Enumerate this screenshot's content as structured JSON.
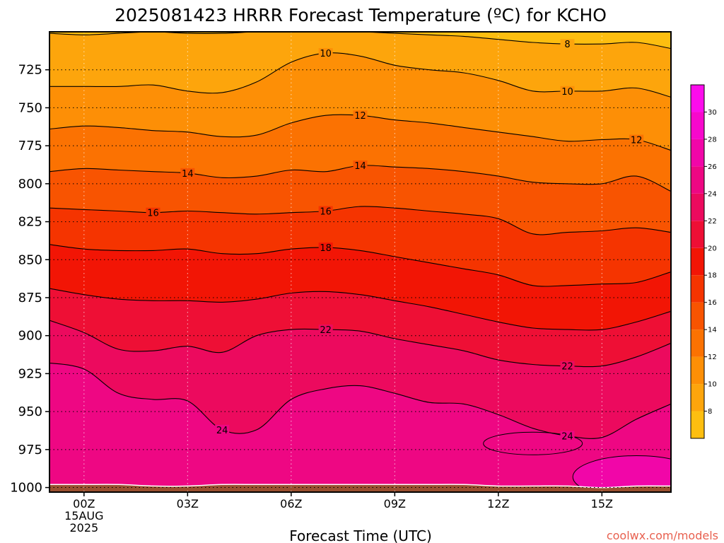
{
  "chart_data": {
    "type": "contour",
    "title": "2025081423 HRRR Forecast Temperature (ºC) for KCHO",
    "xlabel": "Forecast Time (UTC)",
    "ylabel": "",
    "x_ticks": [
      {
        "hour": 0,
        "lines": [
          "00Z",
          "15AUG",
          "2025"
        ]
      },
      {
        "hour": 3,
        "lines": [
          "03Z"
        ]
      },
      {
        "hour": 6,
        "lines": [
          "06Z"
        ]
      },
      {
        "hour": 9,
        "lines": [
          "09Z"
        ]
      },
      {
        "hour": 12,
        "lines": [
          "12Z"
        ]
      },
      {
        "hour": 15,
        "lines": [
          "15Z"
        ]
      }
    ],
    "xlim": [
      -1,
      17
    ],
    "y_ticks": [
      725,
      750,
      775,
      800,
      825,
      850,
      875,
      900,
      925,
      950,
      975,
      1000
    ],
    "ylim": [
      700,
      1003
    ],
    "x_hours": [
      -1,
      0,
      1,
      2,
      3,
      4,
      5,
      6,
      7,
      8,
      9,
      10,
      11,
      12,
      13,
      14,
      15,
      16,
      17
    ],
    "contour_levels": [
      8,
      10,
      12,
      14,
      16,
      18,
      20,
      22,
      24
    ],
    "isotherms": [
      {
        "level": 8,
        "p": [
          701,
          702,
          701,
          700,
          701,
          701,
          700,
          700,
          700,
          700,
          701,
          702,
          703,
          705,
          707,
          708,
          708,
          707,
          711
        ]
      },
      {
        "level": 10,
        "p": [
          736,
          736,
          736,
          735,
          739,
          740,
          733,
          720,
          714,
          716,
          722,
          725,
          727,
          732,
          739,
          739,
          739,
          737,
          743
        ]
      },
      {
        "level": 12,
        "p": [
          764,
          762,
          763,
          765,
          766,
          769,
          768,
          760,
          755,
          755,
          758,
          760,
          763,
          766,
          769,
          772,
          771,
          771,
          778
        ]
      },
      {
        "level": 14,
        "p": [
          792,
          790,
          791,
          792,
          793,
          796,
          795,
          791,
          792,
          788,
          789,
          790,
          792,
          795,
          799,
          800,
          800,
          795,
          805
        ]
      },
      {
        "level": 16,
        "p": [
          816,
          817,
          818,
          819,
          818,
          819,
          820,
          819,
          818,
          815,
          816,
          818,
          820,
          823,
          833,
          832,
          831,
          829,
          832
        ]
      },
      {
        "level": 18,
        "p": [
          840,
          843,
          844,
          844,
          843,
          846,
          846,
          843,
          842,
          844,
          848,
          852,
          856,
          860,
          867,
          867,
          866,
          865,
          858
        ]
      },
      {
        "level": 20,
        "p": [
          869,
          873,
          876,
          877,
          877,
          878,
          876,
          872,
          871,
          873,
          877,
          881,
          886,
          891,
          895,
          896,
          896,
          891,
          884
        ]
      },
      {
        "level": 22,
        "p": [
          890,
          898,
          909,
          910,
          907,
          911,
          900,
          896,
          896,
          897,
          902,
          906,
          910,
          916,
          919,
          920,
          920,
          914,
          905
        ]
      },
      {
        "level": 24,
        "p": [
          918,
          922,
          938,
          942,
          943,
          962,
          962,
          942,
          935,
          933,
          938,
          944,
          945,
          952,
          961,
          966,
          967,
          955,
          945
        ]
      }
    ],
    "contour_labels": [
      {
        "level": 10,
        "hour": 7.0
      },
      {
        "level": 10,
        "hour": 14.0
      },
      {
        "level": 8,
        "hour": 14.0
      },
      {
        "level": 12,
        "hour": 8.0
      },
      {
        "level": 12,
        "hour": 16.0
      },
      {
        "level": 14,
        "hour": 3.0
      },
      {
        "level": 14,
        "hour": 8.0
      },
      {
        "level": 16,
        "hour": 2.0
      },
      {
        "level": 16,
        "hour": 7.0
      },
      {
        "level": 18,
        "hour": 7.0
      },
      {
        "level": 22,
        "hour": 7.0
      },
      {
        "level": 22,
        "hour": 14.0
      },
      {
        "level": 24,
        "hour": 4.0
      },
      {
        "level": 24,
        "hour": 14.0
      }
    ],
    "warm_pockets": [
      {
        "level": 24,
        "hour": 13.0,
        "p": 971
      },
      {
        "level": 26,
        "hour": 16.0,
        "p": 993
      }
    ],
    "surface_p": [
      998,
      998,
      998,
      999,
      999,
      998,
      998,
      998,
      998,
      998,
      998,
      998,
      998,
      999,
      999,
      999,
      1000,
      999,
      999
    ],
    "colorbar": {
      "ticks": [
        8,
        10,
        12,
        14,
        16,
        18,
        20,
        22,
        24,
        26,
        28,
        30
      ],
      "range": [
        6,
        32
      ],
      "colors": [
        {
          "from": 6,
          "to": 8,
          "color": "#FDBE10"
        },
        {
          "from": 8,
          "to": 10,
          "color": "#FDA50C"
        },
        {
          "from": 10,
          "to": 12,
          "color": "#FD8F06"
        },
        {
          "from": 12,
          "to": 14,
          "color": "#FB7202"
        },
        {
          "from": 14,
          "to": 16,
          "color": "#F85401"
        },
        {
          "from": 16,
          "to": 18,
          "color": "#F53400"
        },
        {
          "from": 18,
          "to": 20,
          "color": "#F21505"
        },
        {
          "from": 20,
          "to": 22,
          "color": "#EE0F35"
        },
        {
          "from": 22,
          "to": 24,
          "color": "#EC0A5E"
        },
        {
          "from": 24,
          "to": 26,
          "color": "#EE0783"
        },
        {
          "from": 26,
          "to": 28,
          "color": "#F106A8"
        },
        {
          "from": 28,
          "to": 30,
          "color": "#F708CC"
        },
        {
          "from": 30,
          "to": 32,
          "color": "#FC0CEC"
        }
      ]
    },
    "ground_color": "#9A5030",
    "grid": "dotted"
  },
  "credit": "coolwx.com/models",
  "colors": {
    "credit": "#e8604f",
    "contour": "#000000"
  }
}
